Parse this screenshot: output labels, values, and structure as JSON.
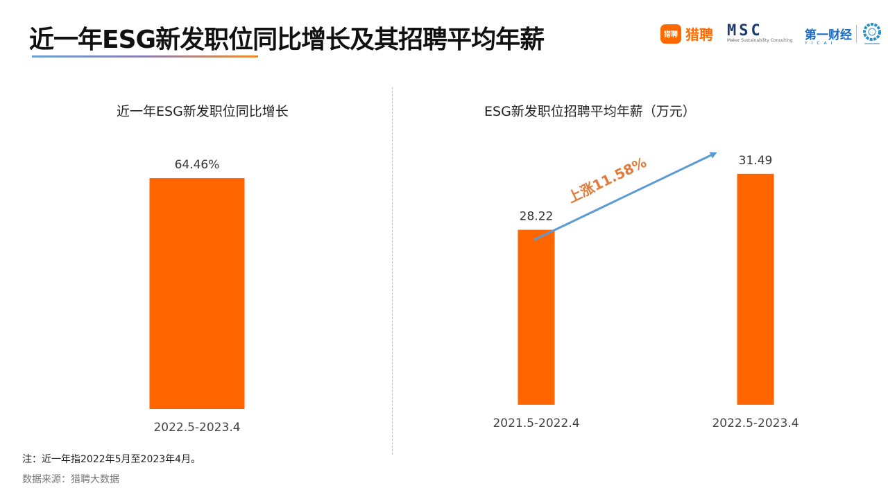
{
  "header": {
    "title": "近一年ESG新发职位同比增长及其招聘平均年薪"
  },
  "logos": {
    "liepin_icon": "猎聘",
    "liepin_name": "猎聘",
    "msc_name": "MSC",
    "msc_sub": "Maker Sustainability Consulting",
    "yicai_name": "第一财经",
    "yicai_sub": "YICAI",
    "sdg_icon": "sdg-wheel-icon"
  },
  "colors": {
    "bar": "#ff6600",
    "arrow": "#5b9bd5",
    "annotation": "#e07b39"
  },
  "chart_data": [
    {
      "type": "bar",
      "title": "近一年ESG新发职位同比增长",
      "categories": [
        "2022.5-2023.4"
      ],
      "values": [
        64.46
      ],
      "value_labels": [
        "64.46%"
      ],
      "ylim": [
        0,
        72.4
      ]
    },
    {
      "type": "bar",
      "title": "ESG新发职位招聘平均年薪（万元）",
      "categories": [
        "2021.5-2022.4",
        "2022.5-2023.4"
      ],
      "values": [
        28.22,
        31.49
      ],
      "value_labels": [
        "28.22",
        "31.49"
      ],
      "ylim": [
        18,
        32.9
      ],
      "annotation": "上涨11.58%"
    }
  ],
  "footer": {
    "note": "注：近一年指2022年5月至2023年4月。",
    "source": "数据来源：猎聘大数据"
  }
}
